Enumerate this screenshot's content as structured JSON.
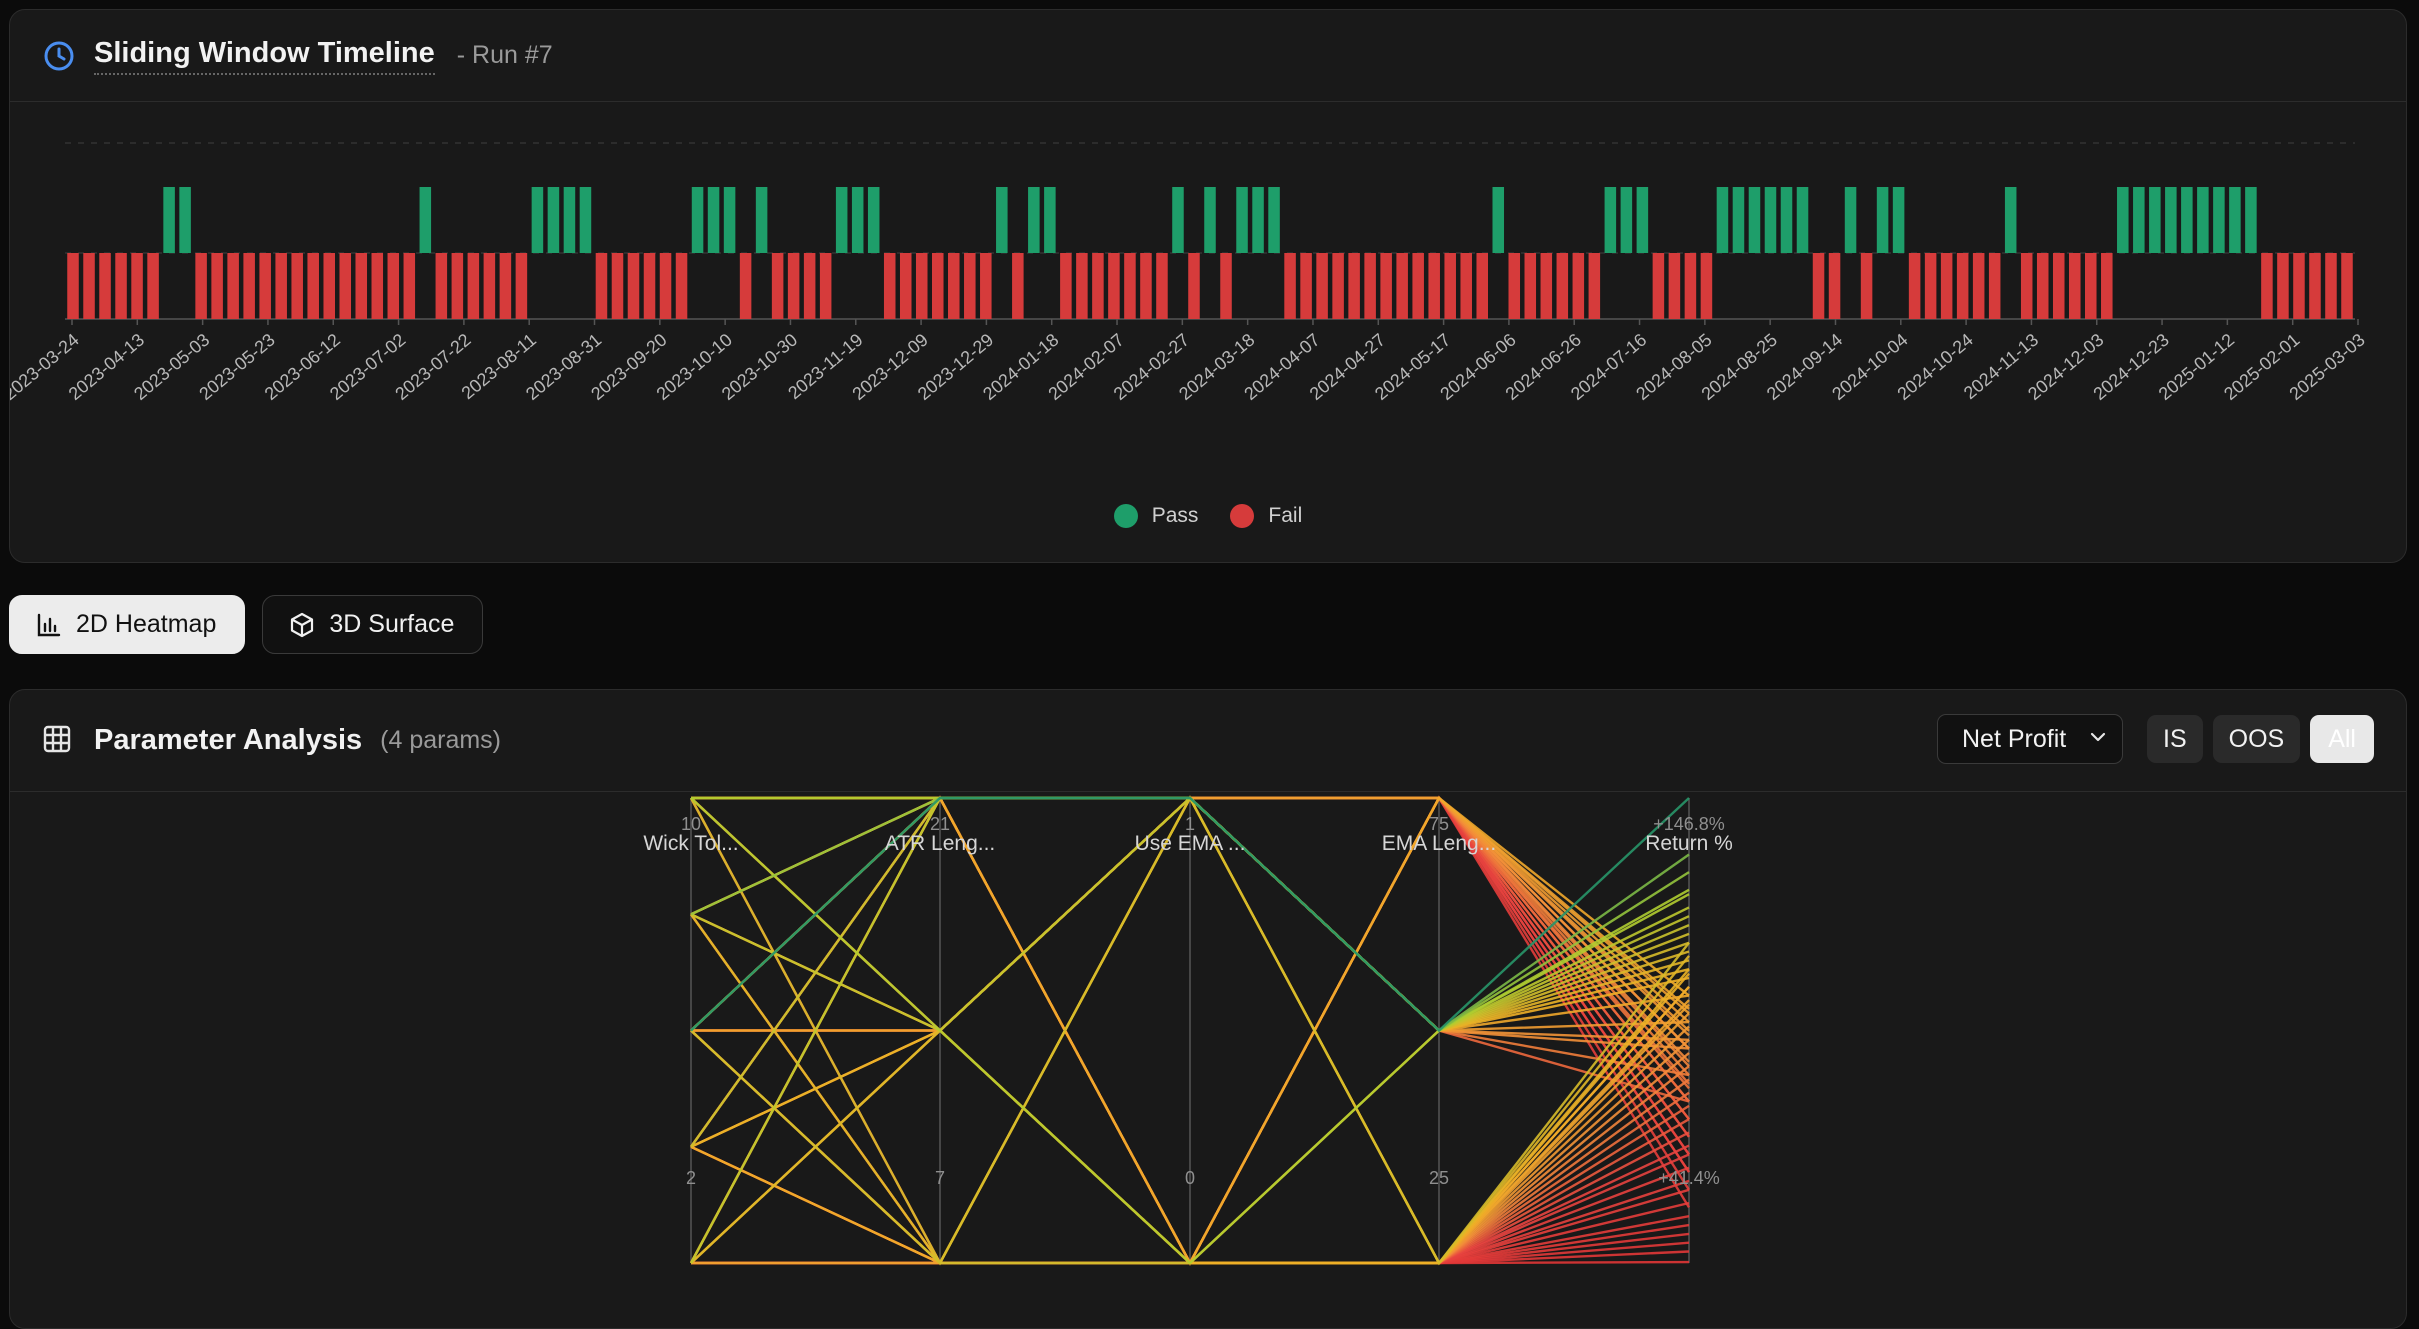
{
  "timeline": {
    "title": "Sliding Window Timeline",
    "run": "- Run #7",
    "legend": [
      {
        "label": "Pass",
        "color": "#1e9e6a"
      },
      {
        "label": "Fail",
        "color": "#d63b3b"
      }
    ],
    "dates": [
      "2023-03-24",
      "2023-04-13",
      "2023-05-03",
      "2023-05-23",
      "2023-06-12",
      "2023-07-02",
      "2023-07-22",
      "2023-08-11",
      "2023-08-31",
      "2023-09-20",
      "2023-10-10",
      "2023-10-30",
      "2023-11-19",
      "2023-12-09",
      "2023-12-29",
      "2024-01-18",
      "2024-02-07",
      "2024-02-27",
      "2024-03-18",
      "2024-04-07",
      "2024-04-27",
      "2024-05-17",
      "2024-06-06",
      "2024-06-26",
      "2024-07-16",
      "2024-08-05",
      "2024-08-25",
      "2024-09-14",
      "2024-10-04",
      "2024-10-24",
      "2024-11-13",
      "2024-12-03",
      "2024-12-23",
      "2025-01-12",
      "2025-02-01",
      "2025-03-03"
    ],
    "results": "FFFFFFPPFFFFFFFFFFFFFFPFFFFFFPPPPFFFFFFPPPFPFFFFPPPFFFFFFFPFPPFFFFFFFPFPFPPPFFFFFFFFFFFFFPFFFFFFPPPFFFFPPPPPPFFPFPPFFFFFFPFFFFFFPPPPPPPPPFFFFFF"
  },
  "view_toggle": [
    {
      "label": "2D Heatmap",
      "icon": "bar-chart-icon",
      "active": true
    },
    {
      "label": "3D Surface",
      "icon": "cube-icon",
      "active": false
    }
  ],
  "analysis": {
    "title": "Parameter Analysis",
    "count": "(4 params)",
    "metric": "Net Profit",
    "segments": [
      {
        "label": "IS",
        "active": false
      },
      {
        "label": "OOS",
        "active": false
      },
      {
        "label": "All",
        "active": true
      }
    ]
  },
  "chart_data": {
    "type": "parallel-coordinates",
    "axes": [
      {
        "name": "Wick Tol...",
        "max": "10",
        "min": "2",
        "lo": 2,
        "hi": 10
      },
      {
        "name": "ATR Leng...",
        "max": "21",
        "min": "7",
        "lo": 7,
        "hi": 21
      },
      {
        "name": "Use EMA ...",
        "max": "1",
        "min": "0",
        "lo": 0,
        "hi": 1
      },
      {
        "name": "EMA Leng...",
        "max": "75",
        "min": "25",
        "lo": 25,
        "hi": 75
      },
      {
        "name": "Return %",
        "max": "+146.8%",
        "min": "+41.4%",
        "lo": 41.4,
        "hi": 146.8
      }
    ],
    "lines": [
      [
        2,
        7,
        0,
        25,
        41.6
      ],
      [
        2,
        7,
        0,
        25,
        44
      ],
      [
        2,
        7,
        0,
        25,
        46
      ],
      [
        2,
        7,
        0,
        25,
        48
      ],
      [
        2,
        7,
        0,
        25,
        50
      ],
      [
        4,
        7,
        0,
        25,
        52
      ],
      [
        4,
        7,
        0,
        25,
        55
      ],
      [
        4,
        7,
        0,
        25,
        58
      ],
      [
        6,
        7,
        0,
        25,
        60
      ],
      [
        6,
        7,
        0,
        25,
        63
      ],
      [
        6,
        7,
        0,
        25,
        66
      ],
      [
        8,
        7,
        0,
        25,
        68
      ],
      [
        8,
        7,
        0,
        25,
        71
      ],
      [
        10,
        7,
        0,
        25,
        74
      ],
      [
        10,
        7,
        0,
        25,
        77
      ],
      [
        2,
        7,
        0,
        25,
        80
      ],
      [
        2,
        7,
        0,
        25,
        83
      ],
      [
        4,
        7,
        0,
        25,
        86
      ],
      [
        6,
        7,
        0,
        25,
        89
      ],
      [
        8,
        7,
        0,
        25,
        92
      ],
      [
        10,
        14,
        0,
        25,
        95
      ],
      [
        8,
        14,
        0,
        25,
        98
      ],
      [
        6,
        14,
        0,
        25,
        101
      ],
      [
        4,
        14,
        0,
        25,
        104
      ],
      [
        2,
        14,
        0,
        25,
        107
      ],
      [
        2,
        21,
        0,
        75,
        54
      ],
      [
        4,
        21,
        0,
        75,
        58
      ],
      [
        6,
        21,
        0,
        75,
        62
      ],
      [
        8,
        21,
        0,
        75,
        66
      ],
      [
        10,
        21,
        0,
        75,
        70
      ],
      [
        2,
        21,
        0,
        75,
        74
      ],
      [
        4,
        21,
        0,
        75,
        78
      ],
      [
        6,
        21,
        0,
        75,
        81
      ],
      [
        8,
        21,
        0,
        75,
        84
      ],
      [
        10,
        21,
        0,
        75,
        87
      ],
      [
        2,
        21,
        0,
        75,
        90
      ],
      [
        4,
        21,
        0,
        75,
        93
      ],
      [
        6,
        21,
        0,
        75,
        96
      ],
      [
        8,
        21,
        0,
        75,
        99
      ],
      [
        10,
        21,
        0,
        75,
        102
      ],
      [
        6,
        14,
        1,
        75,
        62
      ],
      [
        4,
        14,
        1,
        75,
        66
      ],
      [
        8,
        14,
        1,
        75,
        70
      ],
      [
        10,
        14,
        1,
        75,
        74
      ],
      [
        2,
        14,
        1,
        75,
        78
      ],
      [
        6,
        14,
        1,
        75,
        82
      ],
      [
        4,
        14,
        1,
        75,
        86
      ],
      [
        8,
        14,
        1,
        75,
        90
      ],
      [
        10,
        14,
        1,
        75,
        94
      ],
      [
        2,
        14,
        1,
        75,
        98
      ],
      [
        2,
        7,
        1,
        25,
        100
      ],
      [
        4,
        7,
        1,
        25,
        104
      ],
      [
        6,
        7,
        1,
        25,
        108
      ],
      [
        8,
        7,
        1,
        25,
        111
      ],
      [
        10,
        7,
        1,
        25,
        114
      ],
      [
        4,
        21,
        1,
        50,
        78
      ],
      [
        6,
        21,
        1,
        50,
        84
      ],
      [
        8,
        21,
        1,
        50,
        90
      ],
      [
        10,
        21,
        1,
        50,
        96
      ],
      [
        2,
        21,
        1,
        50,
        102
      ],
      [
        10,
        21,
        1,
        50,
        106
      ],
      [
        8,
        21,
        1,
        50,
        110
      ],
      [
        6,
        21,
        1,
        50,
        114
      ],
      [
        4,
        21,
        1,
        50,
        118
      ],
      [
        2,
        21,
        1,
        50,
        122
      ],
      [
        10,
        21,
        1,
        50,
        126
      ],
      [
        8,
        21,
        1,
        50,
        130
      ],
      [
        6,
        21,
        1,
        50,
        134
      ],
      [
        4,
        14,
        1,
        50,
        108
      ],
      [
        2,
        14,
        1,
        50,
        112
      ],
      [
        6,
        21,
        1,
        50,
        146.8
      ],
      [
        10,
        14,
        0,
        50,
        125
      ],
      [
        8,
        14,
        1,
        50,
        120
      ],
      [
        6,
        7,
        0,
        50,
        116
      ],
      [
        4,
        7,
        0,
        50,
        92
      ]
    ]
  }
}
